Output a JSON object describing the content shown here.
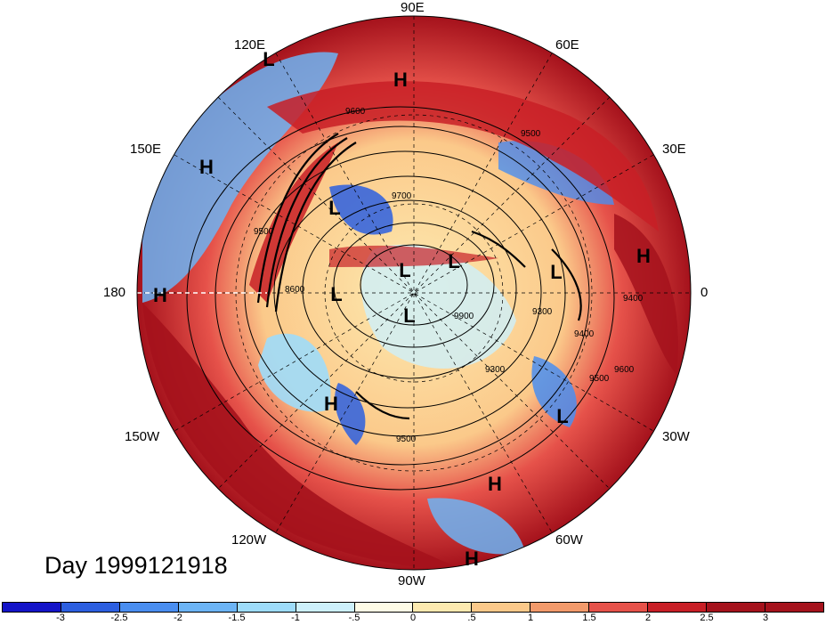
{
  "title": "Day 1999121918",
  "lon_labels": [
    "90E",
    "60E",
    "120E",
    "150E",
    "30E",
    "180",
    "0",
    "150W",
    "30W",
    "120W",
    "60W",
    "90W"
  ],
  "pressure_centers": [
    "L",
    "H",
    "H",
    "L",
    "L",
    "L",
    "H",
    "L",
    "L",
    "L",
    "H",
    "L",
    "H",
    "H",
    "H"
  ],
  "contour_labels": [
    "9500",
    "9600",
    "9700",
    "9500",
    "9400",
    "9300",
    "9900",
    "8600",
    "9600",
    "9500",
    "9400",
    "9300",
    "9500"
  ],
  "colorbar": {
    "ticks": [
      "-3",
      "-2.5",
      "-2",
      "-1.5",
      "-1",
      "-.5",
      "0",
      ".5",
      "1",
      "1.5",
      "2",
      "2.5",
      "3"
    ],
    "colors": [
      "#1414c8",
      "#2c5fe0",
      "#4a8ef0",
      "#6cb4f5",
      "#9edcfa",
      "#cdf0fb",
      "#fefbe6",
      "#fdeab0",
      "#fbc98a",
      "#f29a6b",
      "#e6524a",
      "#c81f26",
      "#a5121c"
    ]
  }
}
